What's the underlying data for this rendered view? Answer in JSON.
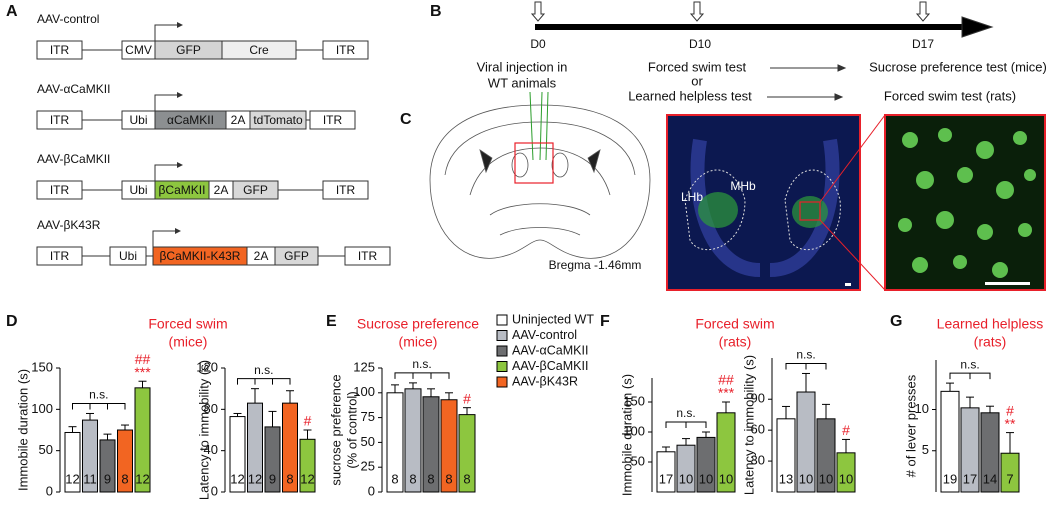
{
  "panels": {
    "a": "A",
    "b": "B",
    "c": "C",
    "d": "D",
    "e": "E",
    "f": "F",
    "g": "G"
  },
  "constructs": [
    {
      "name": "AAV-control",
      "parts": [
        "ITR",
        "CMV",
        "GFP",
        "Cre",
        "ITR"
      ]
    },
    {
      "name": "AAV-αCaMKII",
      "parts": [
        "ITR",
        "Ubi",
        "αCaMKII",
        "2A",
        "tdTomato",
        "ITR"
      ]
    },
    {
      "name": "AAV-βCaMKII",
      "parts": [
        "ITR",
        "Ubi",
        "βCaMKII",
        "2A",
        "GFP",
        "ITR"
      ]
    },
    {
      "name": "AAV-βK43R",
      "parts": [
        "ITR",
        "Ubi",
        "βCaMKII-K43R",
        "2A",
        "GFP",
        "ITR"
      ]
    }
  ],
  "timeline": {
    "days": [
      "D0",
      "D10",
      "D17"
    ],
    "injection": [
      "Viral injection in",
      "WT animals"
    ],
    "tests": [
      "Forced swim test",
      "or",
      "Learned helpless test"
    ],
    "mice_test": "Sucrose preference test (mice)",
    "rats_test": "Forced swim test (rats)"
  },
  "histology": {
    "bregma": "Bregma -1.46mm",
    "labels": [
      "MHb",
      "LHb"
    ]
  },
  "chart_data": [
    {
      "type": "bar",
      "title": [
        "Forced swim",
        "(mice)"
      ],
      "ylabel": [
        "Immobile duration (s)"
      ],
      "ylim": [
        0,
        150
      ],
      "yticks": [
        0,
        50,
        100,
        150
      ],
      "values": [
        72,
        87,
        63,
        75,
        126
      ],
      "errors": [
        7,
        8,
        7,
        6,
        8
      ],
      "colors": [
        "#ffffff",
        "#b8bcc4",
        "#6d6e70",
        "#f26522",
        "#8dc63f"
      ],
      "n": [
        12,
        11,
        9,
        8,
        12
      ],
      "ns": "n.s.",
      "marks": [
        "##",
        "***"
      ],
      "annotation_color": "#e8202a"
    },
    {
      "type": "bar",
      "ylabel": [
        "Latency to immobility (s)"
      ],
      "ylim": [
        0,
        120
      ],
      "yticks": [
        0,
        40,
        80,
        120
      ],
      "values": [
        73,
        86,
        63,
        86,
        51
      ],
      "errors": [
        3,
        14,
        15,
        12,
        9
      ],
      "colors": [
        "#ffffff",
        "#b8bcc4",
        "#6d6e70",
        "#f26522",
        "#8dc63f"
      ],
      "n": [
        12,
        12,
        9,
        8,
        12
      ],
      "ns": "n.s.",
      "marks": [
        "#"
      ],
      "annotation_color": "#e8202a"
    },
    {
      "type": "bar",
      "title": [
        "Sucrose preference",
        "(mice)"
      ],
      "ylabel": [
        "sucrose preference",
        "(% of control)"
      ],
      "ylim": [
        0,
        125
      ],
      "yticks": [
        0,
        25,
        50,
        75,
        100,
        125
      ],
      "values": [
        100,
        104,
        96,
        93,
        78
      ],
      "errors": [
        8,
        6,
        8,
        7,
        7
      ],
      "colors": [
        "#ffffff",
        "#b8bcc4",
        "#6d6e70",
        "#f26522",
        "#8dc63f"
      ],
      "n": [
        8,
        8,
        8,
        8,
        8
      ],
      "ns": "n.s.",
      "marks": [
        "#"
      ],
      "annotation_color": "#e8202a",
      "legend": [
        {
          "name": "Uninjected WT",
          "color": "#ffffff"
        },
        {
          "name": "AAV-control",
          "color": "#b8bcc4"
        },
        {
          "name": "AAV-αCaMKII",
          "color": "#6d6e70"
        },
        {
          "name": "AAV-βCaMKII",
          "color": "#8dc63f"
        },
        {
          "name": "AAV-βK43R",
          "color": "#f26522"
        }
      ]
    },
    {
      "type": "bar",
      "title": [
        "Forced swim",
        "(rats)"
      ],
      "ylabel": [
        "Immobile duration (s)"
      ],
      "ylim": [
        0,
        190
      ],
      "yticks": [
        50,
        100,
        150
      ],
      "values": [
        67,
        78,
        91,
        132
      ],
      "errors": [
        8,
        11,
        9,
        18
      ],
      "colors": [
        "#ffffff",
        "#b8bcc4",
        "#6d6e70",
        "#8dc63f"
      ],
      "n": [
        17,
        10,
        10,
        10
      ],
      "ns": "n.s.",
      "marks": [
        "##",
        "***"
      ],
      "annotation_color": "#e8202a"
    },
    {
      "type": "bar",
      "ylabel": [
        "Latency to immobility (s)"
      ],
      "ylim": [
        0,
        130
      ],
      "yticks": [
        30,
        60,
        90
      ],
      "values": [
        71,
        97,
        71,
        38
      ],
      "errors": [
        12,
        18,
        14,
        13
      ],
      "colors": [
        "#ffffff",
        "#b8bcc4",
        "#6d6e70",
        "#8dc63f"
      ],
      "n": [
        13,
        10,
        10,
        10
      ],
      "ns": "n.s.",
      "marks": [
        "#"
      ],
      "annotation_color": "#e8202a"
    },
    {
      "type": "bar",
      "title": [
        "Learned helpless",
        "(rats)"
      ],
      "ylabel": [
        "# of lever presses"
      ],
      "ylim": [
        0,
        16
      ],
      "yticks": [
        5,
        10
      ],
      "values": [
        12.2,
        10.2,
        9.6,
        4.7
      ],
      "errors": [
        1.0,
        1.3,
        0.8,
        2.5
      ],
      "colors": [
        "#ffffff",
        "#b8bcc4",
        "#6d6e70",
        "#8dc63f"
      ],
      "n": [
        19,
        17,
        14,
        7
      ],
      "ns": "n.s.",
      "marks": [
        "#",
        "**"
      ],
      "annotation_color": "#e8202a"
    }
  ]
}
